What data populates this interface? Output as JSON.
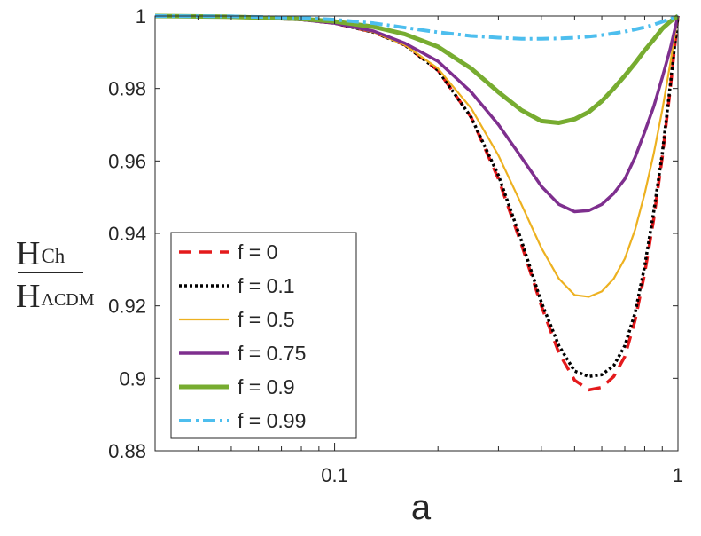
{
  "chart_data": {
    "type": "line",
    "title": "",
    "xlabel": "a",
    "ylabel_num": "H",
    "ylabel_num_sub": "Ch",
    "ylabel_den": "H",
    "ylabel_den_sub": "ΛCDM",
    "xscale": "log",
    "xlim": [
      0.03,
      1.0
    ],
    "ylim": [
      0.88,
      1.0
    ],
    "xticks": [
      0.1,
      1
    ],
    "xtick_labels": [
      "0.1",
      "1"
    ],
    "yticks": [
      0.88,
      0.9,
      0.92,
      0.94,
      0.96,
      0.98,
      1.0
    ],
    "ytick_labels": [
      "0.88",
      "0.9",
      "0.92",
      "0.94",
      "0.96",
      "0.98",
      "1"
    ],
    "grid": false,
    "legend_position": "bottom-left",
    "x": [
      0.03,
      0.05,
      0.08,
      0.1,
      0.13,
      0.16,
      0.2,
      0.25,
      0.3,
      0.35,
      0.4,
      0.45,
      0.5,
      0.55,
      0.6,
      0.65,
      0.7,
      0.75,
      0.8,
      0.85,
      0.9,
      0.95,
      1.0
    ],
    "series": [
      {
        "name": "f = 0",
        "label": "f = 0",
        "color": "#e41a1c",
        "dash": "14,9",
        "width": 3.5,
        "values": [
          1.0,
          0.9998,
          0.999,
          0.998,
          0.9955,
          0.992,
          0.985,
          0.972,
          0.955,
          0.937,
          0.92,
          0.907,
          0.8995,
          0.8968,
          0.8975,
          0.9005,
          0.906,
          0.916,
          0.929,
          0.944,
          0.961,
          0.98,
          1.0
        ]
      },
      {
        "name": "f = 0.1",
        "label": "f = 0.1",
        "color": "#000000",
        "dash": "3,3",
        "width": 3.5,
        "values": [
          1.0,
          0.9998,
          0.999,
          0.998,
          0.9955,
          0.992,
          0.985,
          0.972,
          0.956,
          0.938,
          0.921,
          0.909,
          0.902,
          0.9005,
          0.901,
          0.9035,
          0.909,
          0.918,
          0.931,
          0.946,
          0.962,
          0.981,
          1.0
        ]
      },
      {
        "name": "f = 0.5",
        "label": "f = 0.5",
        "color": "#edb120",
        "dash": "",
        "width": 2.2,
        "values": [
          1.0,
          0.9998,
          0.999,
          0.998,
          0.9955,
          0.992,
          0.9855,
          0.9745,
          0.9615,
          0.948,
          0.936,
          0.9275,
          0.923,
          0.9225,
          0.924,
          0.9275,
          0.933,
          0.941,
          0.951,
          0.962,
          0.974,
          0.987,
          1.0
        ]
      },
      {
        "name": "f = 0.75",
        "label": "f = 0.75",
        "color": "#7e2f8e",
        "dash": "",
        "width": 3.5,
        "values": [
          1.0,
          0.9998,
          0.999,
          0.998,
          0.9958,
          0.9925,
          0.9875,
          0.979,
          0.97,
          0.961,
          0.953,
          0.948,
          0.946,
          0.9463,
          0.948,
          0.951,
          0.955,
          0.961,
          0.968,
          0.975,
          0.983,
          0.991,
          1.0
        ]
      },
      {
        "name": "f = 0.9",
        "label": "f = 0.9",
        "color": "#77ac30",
        "dash": "",
        "width": 5,
        "values": [
          1.0,
          0.9998,
          0.9992,
          0.9985,
          0.997,
          0.995,
          0.9915,
          0.9855,
          0.979,
          0.974,
          0.971,
          0.9705,
          0.9715,
          0.9735,
          0.9765,
          0.98,
          0.9835,
          0.987,
          0.9905,
          0.9935,
          0.9965,
          0.9985,
          1.0
        ]
      },
      {
        "name": "f = 0.99",
        "label": "f = 0.99",
        "color": "#4dbeee",
        "dash": "14,5,3,5",
        "width": 4,
        "values": [
          1.0,
          0.9999,
          0.9995,
          0.999,
          0.998,
          0.9968,
          0.9955,
          0.9945,
          0.994,
          0.9937,
          0.9937,
          0.9938,
          0.994,
          0.9943,
          0.9947,
          0.9952,
          0.9957,
          0.9963,
          0.9969,
          0.9976,
          0.9984,
          0.9992,
          1.0
        ]
      }
    ]
  }
}
